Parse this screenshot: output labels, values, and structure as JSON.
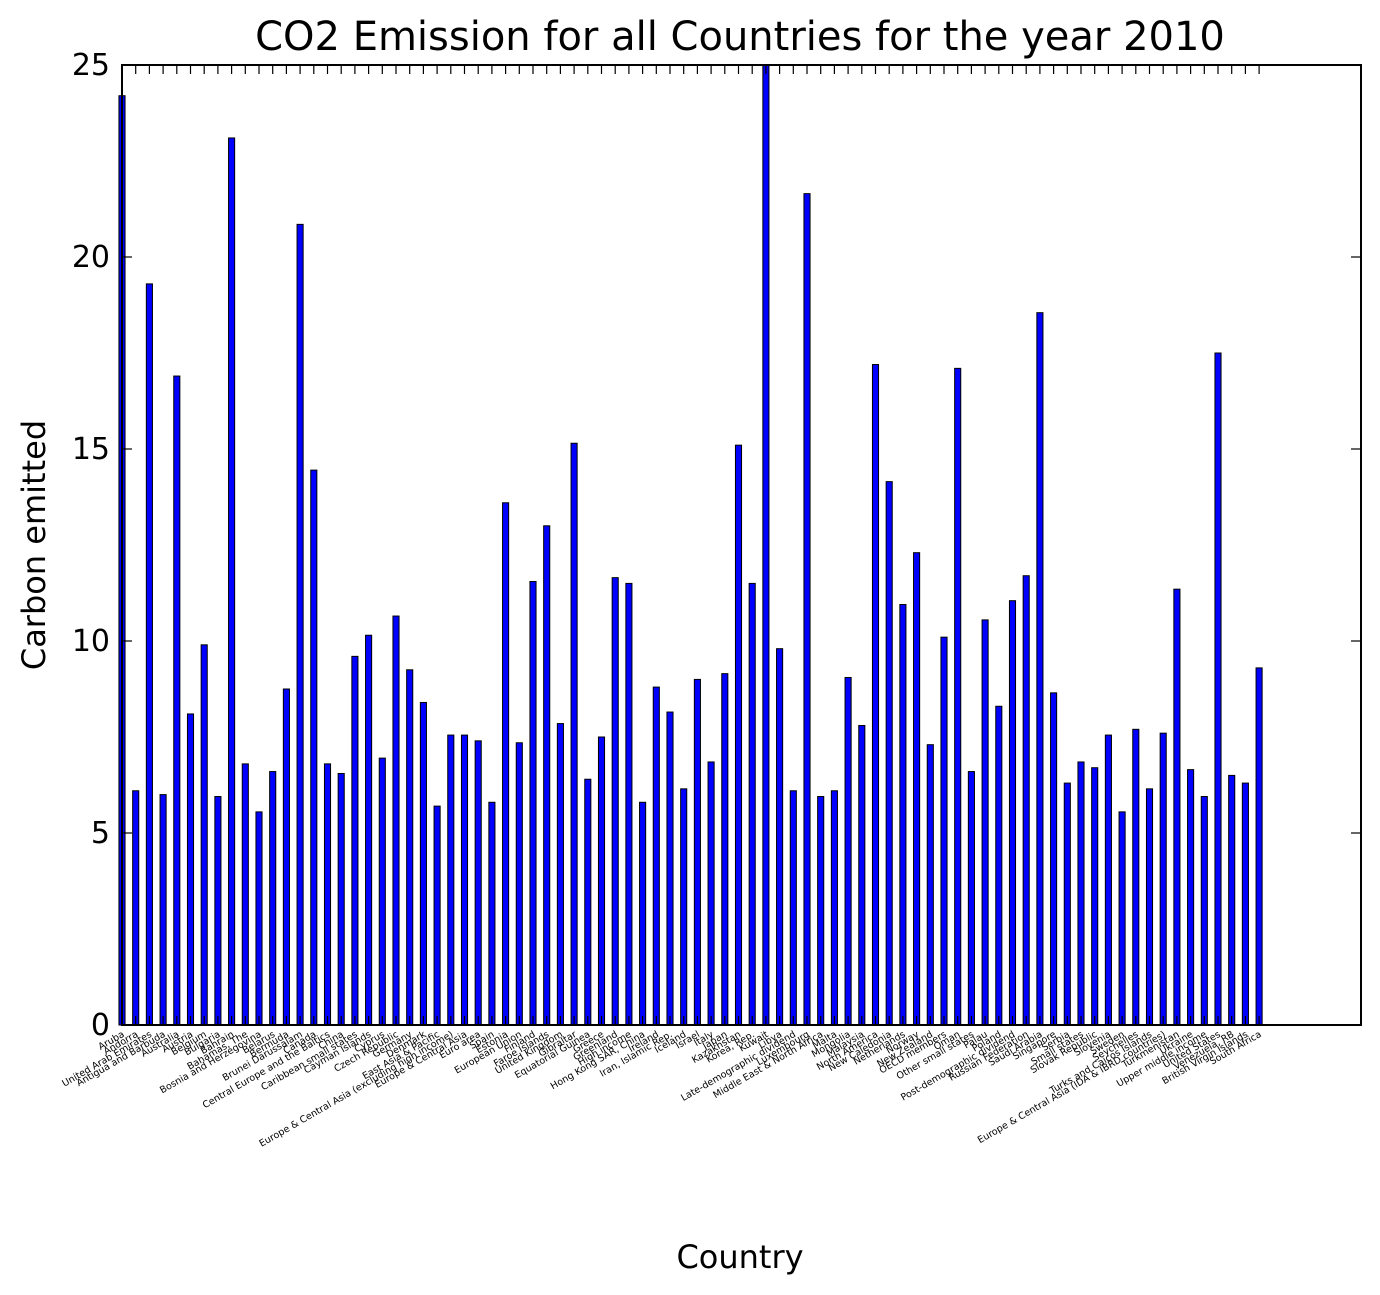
{
  "chart_data": {
    "type": "bar",
    "title": "CO2 Emission for all Countries for the year 2010",
    "xlabel": "Country",
    "ylabel": "Carbon emitted",
    "ylim": [
      0,
      25
    ],
    "yticks": [
      "0",
      "5",
      "10",
      "15",
      "20",
      "25"
    ],
    "grid": false,
    "colors": {
      "bar": "#0000ff",
      "edge": "#000000"
    },
    "categories": [
      "Aruba",
      "Andorra",
      "United Arab Emirates",
      "Antigua and Barbuda",
      "Australia",
      "Austria",
      "Belgium",
      "Bulgaria",
      "Bahrain",
      "Bahamas, The",
      "Bosnia and Herzegovina",
      "Belarus",
      "Bermuda",
      "Brunei Darussalam",
      "Canada",
      "Central Europe and the Baltics",
      "China",
      "Caribbean small states",
      "Cayman Islands",
      "Cyprus",
      "Czech Republic",
      "Germany",
      "Denmark",
      "East Asia & Pacific",
      "Europe & Central Asia (excluding high income)",
      "Europe & Central Asia",
      "Euro area",
      "Spain",
      "Estonia",
      "European Union",
      "Finland",
      "Faroe Islands",
      "United Kingdom",
      "Gibraltar",
      "Equatorial Guinea",
      "Greece",
      "Greenland",
      "High income",
      "Hong Kong SAR, China",
      "Ireland",
      "Iran, Islamic Rep.",
      "Iceland",
      "Israel",
      "Italy",
      "Japan",
      "Kazakhstan",
      "Korea, Rep.",
      "Kuwait",
      "Libya",
      "Late-demographic dividend",
      "Luxembourg",
      "Middle East & North Africa",
      "Malta",
      "Mongolia",
      "Malaysia",
      "North America",
      "New Caledonia",
      "Netherlands",
      "Norway",
      "New Zealand",
      "OECD members",
      "Oman",
      "Other small states",
      "Palau",
      "Poland",
      "Post-demographic dividend",
      "Russian Federation",
      "Saudi Arabia",
      "Singapore",
      "Serbia",
      "Small states",
      "Slovak Republic",
      "Slovenia",
      "Sweden",
      "Seychelles",
      "Turks and Caicos Islands",
      "Europe & Central Asia (IDA & IBRD countries)",
      "Turkmenistan",
      "Ukraine",
      "Upper middle income",
      "United States",
      "Venezuela, RB",
      "British Virgin Islands",
      "South Africa"
    ],
    "values": [
      24.2,
      6.1,
      19.3,
      6.0,
      16.9,
      8.1,
      9.9,
      5.95,
      23.1,
      6.8,
      5.55,
      6.6,
      8.75,
      20.85,
      14.45,
      6.8,
      6.55,
      9.6,
      10.15,
      6.95,
      10.65,
      9.25,
      8.4,
      5.7,
      7.55,
      7.55,
      7.4,
      5.8,
      13.6,
      7.35,
      11.55,
      13.0,
      7.85,
      15.15,
      6.4,
      7.5,
      11.65,
      11.5,
      5.8,
      8.8,
      8.15,
      6.15,
      9.0,
      6.85,
      9.15,
      15.1,
      11.5,
      25.0,
      9.8,
      6.1,
      21.65,
      5.95,
      6.1,
      9.05,
      7.8,
      17.2,
      14.15,
      10.95,
      12.3,
      7.3,
      10.1,
      17.1,
      6.6,
      10.55,
      8.3,
      11.05,
      11.7,
      18.55,
      8.65,
      6.3,
      6.85,
      6.7,
      7.55,
      5.55,
      7.7,
      6.15,
      7.6,
      11.35,
      6.65,
      5.95,
      17.5,
      6.5,
      6.3,
      9.3
    ]
  }
}
